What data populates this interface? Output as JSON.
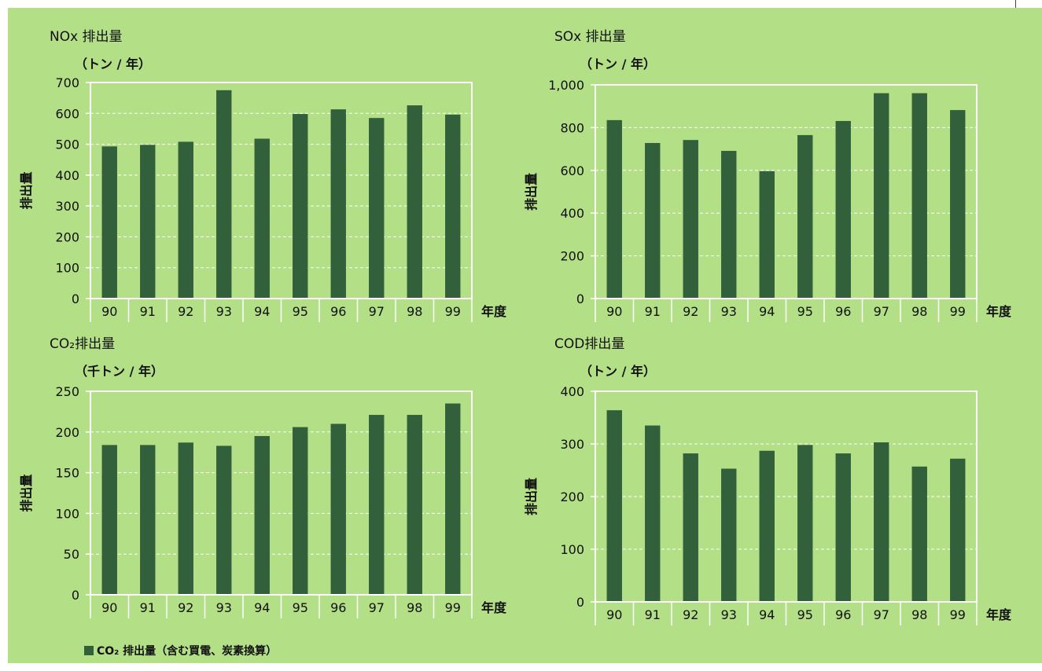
{
  "chart_data": [
    {
      "type": "bar",
      "title": "NOx 排出量",
      "unit_label": "（トン / 年）",
      "ylabel": "排出量",
      "xlabel": "年度",
      "categories": [
        "90",
        "91",
        "92",
        "93",
        "94",
        "95",
        "96",
        "97",
        "98",
        "99"
      ],
      "values": [
        493,
        498,
        508,
        675,
        518,
        598,
        613,
        585,
        626,
        596
      ],
      "ylim": [
        0,
        700
      ],
      "yticks": [
        "0",
        "100",
        "200",
        "300",
        "400",
        "500",
        "600",
        "700"
      ],
      "grid": true
    },
    {
      "type": "bar",
      "title": "SOx 排出量",
      "unit_label": "（トン / 年）",
      "ylabel": "排出量",
      "xlabel": "年度",
      "categories": [
        "90",
        "91",
        "92",
        "93",
        "94",
        "95",
        "96",
        "97",
        "98",
        "99"
      ],
      "values": [
        835,
        728,
        742,
        691,
        596,
        765,
        831,
        961,
        961,
        882
      ],
      "ylim": [
        0,
        1000
      ],
      "yticks": [
        "0",
        "200",
        "400",
        "600",
        "800",
        "1,000"
      ],
      "grid": true
    },
    {
      "type": "bar",
      "title": "CO₂排出量",
      "unit_label": "（千トン / 年）",
      "ylabel": "排出量",
      "xlabel": "年度",
      "categories": [
        "90",
        "91",
        "92",
        "93",
        "94",
        "95",
        "96",
        "97",
        "98",
        "99"
      ],
      "values": [
        184,
        184,
        187,
        183,
        195,
        206,
        210,
        221,
        221,
        235
      ],
      "ylim": [
        0,
        250
      ],
      "yticks": [
        "0",
        "50",
        "100",
        "150",
        "200",
        "250"
      ],
      "grid": true,
      "legend": "CO₂ 排出量（含む買電、炭素換算）"
    },
    {
      "type": "bar",
      "title": "COD排出量",
      "unit_label": "（トン / 年）",
      "ylabel": "排出量",
      "xlabel": "年度",
      "categories": [
        "90",
        "91",
        "92",
        "93",
        "94",
        "95",
        "96",
        "97",
        "98",
        "99"
      ],
      "values": [
        364,
        335,
        282,
        253,
        287,
        298,
        282,
        303,
        257,
        272
      ],
      "ylim": [
        0,
        400
      ],
      "yticks": [
        "0",
        "100",
        "200",
        "300",
        "400"
      ],
      "grid": true
    }
  ],
  "colors": {
    "panel_bg": "#b3df87",
    "bar": "#31603a",
    "frame": "#ffffff"
  }
}
